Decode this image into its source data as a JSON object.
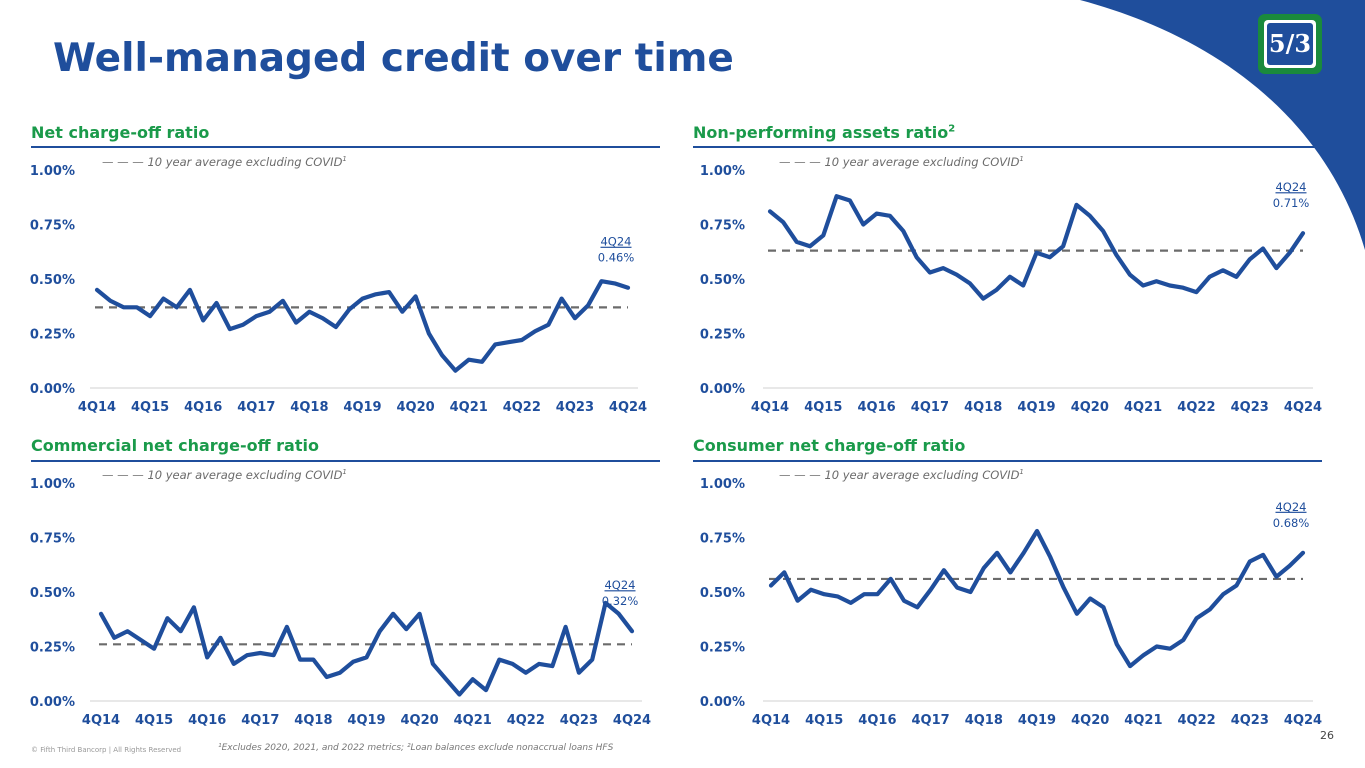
{
  "page": {
    "title": "Well-managed credit over time",
    "footnote": "¹Excludes 2020, 2021, and 2022 metrics; ²Loan balances exclude nonaccrual loans HFS",
    "copyright": "© Fifth Third Bancorp | All Rights Reserved",
    "page_number": "26",
    "logo_text": "5/3"
  },
  "colors": {
    "title": "#1f4e9c",
    "panel_title": "#1a9a4a",
    "series": "#1f4e9c",
    "average_line": "#6b6b6b",
    "corner": "#1f4e9c"
  },
  "chart_data": [
    {
      "type": "line",
      "title": "Net charge-off ratio",
      "title_sup": "",
      "legend": "— — — 10 year average excluding COVID",
      "legend_sup": "1",
      "xlabel": "",
      "ylabel": "",
      "ylim": [
        0,
        1
      ],
      "yticks": [
        "0.00%",
        "0.25%",
        "0.50%",
        "0.75%",
        "1.00%"
      ],
      "xticks": [
        "4Q14",
        "4Q15",
        "4Q16",
        "4Q17",
        "4Q18",
        "4Q19",
        "4Q20",
        "4Q21",
        "4Q22",
        "4Q23",
        "4Q24"
      ],
      "average": 0.37,
      "values": [
        0.45,
        0.4,
        0.37,
        0.37,
        0.33,
        0.41,
        0.37,
        0.45,
        0.31,
        0.39,
        0.27,
        0.29,
        0.33,
        0.35,
        0.4,
        0.3,
        0.35,
        0.32,
        0.28,
        0.36,
        0.41,
        0.43,
        0.44,
        0.35,
        0.42,
        0.25,
        0.15,
        0.08,
        0.13,
        0.12,
        0.2,
        0.21,
        0.22,
        0.26,
        0.29,
        0.41,
        0.32,
        0.38,
        0.49,
        0.48,
        0.46
      ],
      "annotation": {
        "label": "4Q24",
        "value": "0.46%"
      }
    },
    {
      "type": "line",
      "title": "Non-performing assets ratio",
      "title_sup": "2",
      "legend": "— — — 10 year average excluding COVID",
      "legend_sup": "1",
      "xlabel": "",
      "ylabel": "",
      "ylim": [
        0,
        1
      ],
      "yticks": [
        "0.00%",
        "0.25%",
        "0.50%",
        "0.75%",
        "1.00%"
      ],
      "xticks": [
        "4Q14",
        "4Q15",
        "4Q16",
        "4Q17",
        "4Q18",
        "4Q19",
        "4Q20",
        "4Q21",
        "4Q22",
        "4Q23",
        "4Q24"
      ],
      "average": 0.63,
      "values": [
        0.81,
        0.76,
        0.67,
        0.65,
        0.7,
        0.88,
        0.86,
        0.75,
        0.8,
        0.79,
        0.72,
        0.6,
        0.53,
        0.55,
        0.52,
        0.48,
        0.41,
        0.45,
        0.51,
        0.47,
        0.62,
        0.6,
        0.65,
        0.84,
        0.79,
        0.72,
        0.61,
        0.52,
        0.47,
        0.49,
        0.47,
        0.46,
        0.44,
        0.51,
        0.54,
        0.51,
        0.59,
        0.64,
        0.55,
        0.62,
        0.71
      ],
      "annotation": {
        "label": "4Q24",
        "value": "0.71%"
      }
    },
    {
      "type": "line",
      "title": "Commercial net charge-off ratio",
      "title_sup": "",
      "legend": "— — — 10 year average excluding COVID",
      "legend_sup": "1",
      "xlabel": "",
      "ylabel": "",
      "ylim": [
        0,
        1
      ],
      "yticks": [
        "0.00%",
        "0.25%",
        "0.50%",
        "0.75%",
        "1.00%"
      ],
      "xticks": [
        "4Q14",
        "4Q15",
        "4Q16",
        "4Q17",
        "4Q18",
        "4Q19",
        "4Q20",
        "4Q21",
        "4Q22",
        "4Q23",
        "4Q24"
      ],
      "average": 0.26,
      "values": [
        0.4,
        0.29,
        0.32,
        0.28,
        0.24,
        0.38,
        0.32,
        0.43,
        0.2,
        0.29,
        0.17,
        0.21,
        0.22,
        0.21,
        0.34,
        0.19,
        0.19,
        0.11,
        0.13,
        0.18,
        0.2,
        0.32,
        0.4,
        0.33,
        0.4,
        0.17,
        0.1,
        0.03,
        0.1,
        0.05,
        0.19,
        0.17,
        0.13,
        0.17,
        0.16,
        0.34,
        0.13,
        0.19,
        0.45,
        0.4,
        0.32
      ],
      "annotation": {
        "label": "4Q24",
        "value": "0.32%"
      }
    },
    {
      "type": "line",
      "title": "Consumer net charge-off ratio",
      "title_sup": "",
      "legend": "— — — 10 year average excluding COVID",
      "legend_sup": "1",
      "xlabel": "",
      "ylabel": "",
      "ylim": [
        0,
        1
      ],
      "yticks": [
        "0.00%",
        "0.25%",
        "0.50%",
        "0.75%",
        "1.00%"
      ],
      "xticks": [
        "4Q14",
        "4Q15",
        "4Q16",
        "4Q17",
        "4Q18",
        "4Q19",
        "4Q20",
        "4Q21",
        "4Q22",
        "4Q23",
        "4Q24"
      ],
      "average": 0.56,
      "values": [
        0.53,
        0.59,
        0.46,
        0.51,
        0.49,
        0.48,
        0.45,
        0.49,
        0.49,
        0.56,
        0.46,
        0.43,
        0.51,
        0.6,
        0.52,
        0.5,
        0.61,
        0.68,
        0.59,
        0.68,
        0.78,
        0.66,
        0.52,
        0.4,
        0.47,
        0.43,
        0.26,
        0.16,
        0.21,
        0.25,
        0.24,
        0.28,
        0.38,
        0.42,
        0.49,
        0.53,
        0.64,
        0.67,
        0.57,
        0.62,
        0.68
      ],
      "annotation": {
        "label": "4Q24",
        "value": "0.68%"
      }
    }
  ]
}
